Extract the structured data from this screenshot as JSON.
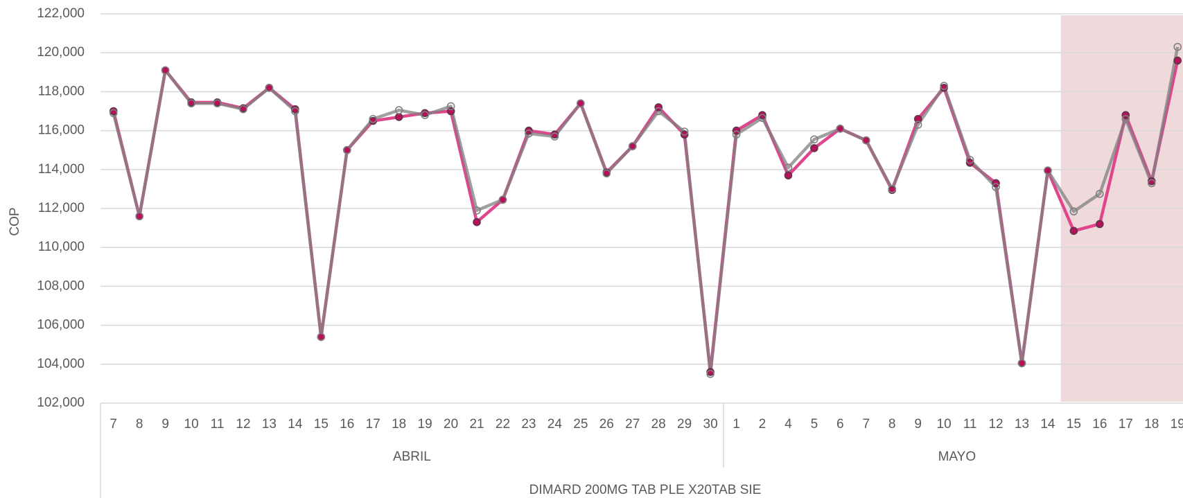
{
  "chart_data": {
    "type": "line",
    "y_label": "COP",
    "outer_group": "DIMARD 200MG TAB PLE X20TAB SIE",
    "groups": [
      {
        "label": "ABRIL",
        "count": 24
      },
      {
        "label": "MAYO",
        "count": 18
      }
    ],
    "categories": [
      "7",
      "8",
      "9",
      "10",
      "11",
      "12",
      "13",
      "14",
      "15",
      "16",
      "17",
      "18",
      "19",
      "20",
      "21",
      "22",
      "23",
      "24",
      "25",
      "26",
      "27",
      "28",
      "29",
      "30",
      "1",
      "2",
      "4",
      "5",
      "6",
      "7",
      "8",
      "9",
      "10",
      "11",
      "12",
      "13",
      "14",
      "15",
      "16",
      "17",
      "18",
      "19"
    ],
    "series": [
      {
        "color": "#e0468e",
        "marker": "#b8105a",
        "values": [
          117000,
          111600,
          119100,
          117450,
          117450,
          117150,
          118200,
          117100,
          105400,
          115000,
          116500,
          116700,
          116900,
          117000,
          111300,
          112450,
          116000,
          115800,
          117400,
          113850,
          115200,
          117200,
          115800,
          103600,
          116000,
          116800,
          113700,
          115100,
          116100,
          115500,
          112950,
          116600,
          118200,
          114350,
          113300,
          104050,
          113950,
          110850,
          111200,
          116800,
          113400,
          119600
        ]
      },
      {
        "color": "#808080",
        "marker": "#808080",
        "hollow": true,
        "values": [
          116900,
          111600,
          119100,
          117400,
          117400,
          117100,
          118200,
          117000,
          105400,
          115000,
          116600,
          117050,
          116800,
          117250,
          111900,
          112450,
          115850,
          115700,
          117400,
          113800,
          115200,
          117000,
          115950,
          103500,
          115800,
          116650,
          114100,
          115550,
          116100,
          115500,
          113000,
          116300,
          118300,
          114500,
          113100,
          104050,
          113950,
          111850,
          112750,
          116600,
          113300,
          120300
        ]
      }
    ],
    "ylim": [
      102000,
      122000
    ],
    "yticks": [
      {
        "value": 102000,
        "label": "102,000"
      },
      {
        "value": 104000,
        "label": "104,000"
      },
      {
        "value": 106000,
        "label": "106,000"
      },
      {
        "value": 108000,
        "label": "108,000"
      },
      {
        "value": 110000,
        "label": "110,000"
      },
      {
        "value": 112000,
        "label": "112,000"
      },
      {
        "value": 114000,
        "label": "114,000"
      },
      {
        "value": 116000,
        "label": "116,000"
      },
      {
        "value": 118000,
        "label": "118,000"
      },
      {
        "value": 120000,
        "label": "120,000"
      },
      {
        "value": 122000,
        "label": "122,000"
      }
    ],
    "grid": true,
    "highlight_color": "#f0d9da"
  }
}
